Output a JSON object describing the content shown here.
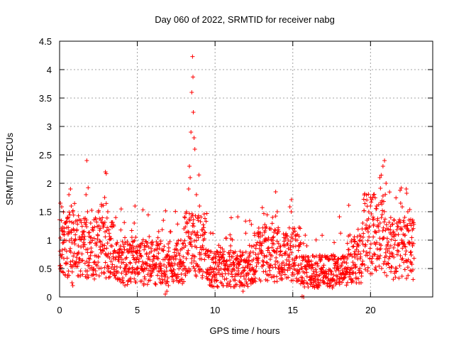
{
  "chart_data": {
    "type": "scatter",
    "title": "Day 060 of 2022, SRMTID for receiver nabg",
    "xlabel": "GPS time / hours",
    "ylabel": "SRMTID / TECUs",
    "xlim": [
      0,
      24
    ],
    "ylim": [
      0,
      4.5
    ],
    "x_ticks": [
      0,
      5,
      10,
      15,
      20
    ],
    "x_tick_labels": [
      "0",
      "5",
      "10",
      "15",
      "20"
    ],
    "y_ticks": [
      0,
      0.5,
      1,
      1.5,
      2,
      2.5,
      3,
      3.5,
      4,
      4.5
    ],
    "y_tick_labels": [
      "0",
      "0.5",
      "1",
      "1.5",
      "2",
      "2.5",
      "3",
      "3.5",
      "4",
      "4.5"
    ],
    "grid": true,
    "marker": "+",
    "color": "#ff0000",
    "data_extent_hours": [
      0,
      22.8
    ],
    "series": [
      {
        "name": "SRMTID",
        "points": [
          [
            0.05,
            1.65
          ],
          [
            0.1,
            1.2
          ],
          [
            0.2,
            0.95
          ],
          [
            0.3,
            1.0
          ],
          [
            0.4,
            0.6
          ],
          [
            0.5,
            1.4
          ],
          [
            0.55,
            1.1
          ],
          [
            0.6,
            1.8
          ],
          [
            0.7,
            1.9
          ],
          [
            0.75,
            1.6
          ],
          [
            0.8,
            0.25
          ],
          [
            0.85,
            0.2
          ],
          [
            0.9,
            1.3
          ],
          [
            1.0,
            1.0
          ],
          [
            1.2,
            0.9
          ],
          [
            1.5,
            1.1
          ],
          [
            1.7,
            1.8
          ],
          [
            1.75,
            2.4
          ],
          [
            1.8,
            1.5
          ],
          [
            2.0,
            1.3
          ],
          [
            2.2,
            0.5
          ],
          [
            2.5,
            0.7
          ],
          [
            2.8,
            1.3
          ],
          [
            2.9,
            1.75
          ],
          [
            2.95,
            2.2
          ],
          [
            3.0,
            2.17
          ],
          [
            3.1,
            1.5
          ],
          [
            3.3,
            0.9
          ],
          [
            3.5,
            0.8
          ],
          [
            3.8,
            0.7
          ],
          [
            4.0,
            0.6
          ],
          [
            4.2,
            0.2
          ],
          [
            4.5,
            0.8
          ],
          [
            4.7,
            0.9
          ],
          [
            4.8,
            1.3
          ],
          [
            4.85,
            1.6
          ],
          [
            4.9,
            1.05
          ],
          [
            5.0,
            0.7
          ],
          [
            5.3,
            0.5
          ],
          [
            5.6,
            0.5
          ],
          [
            5.9,
            0.8
          ],
          [
            6.0,
            0.5
          ],
          [
            6.3,
            0.9
          ],
          [
            6.5,
            0.5
          ],
          [
            6.8,
            0.05
          ],
          [
            6.9,
            0.1
          ],
          [
            7.0,
            0.2
          ],
          [
            7.2,
            0.6
          ],
          [
            7.5,
            0.9
          ],
          [
            7.8,
            1.0
          ],
          [
            8.0,
            1.2
          ],
          [
            8.1,
            0.9
          ],
          [
            8.2,
            1.3
          ],
          [
            8.3,
            1.9
          ],
          [
            8.35,
            2.3
          ],
          [
            8.4,
            2.1
          ],
          [
            8.45,
            2.9
          ],
          [
            8.5,
            3.6
          ],
          [
            8.55,
            4.23
          ],
          [
            8.58,
            3.87
          ],
          [
            8.6,
            3.25
          ],
          [
            8.65,
            2.8
          ],
          [
            8.7,
            2.6
          ],
          [
            8.8,
            1.8
          ],
          [
            9.0,
            1.6
          ],
          [
            9.2,
            0.9
          ],
          [
            9.5,
            0.8
          ],
          [
            9.8,
            0.5
          ],
          [
            10.0,
            0.4
          ],
          [
            10.3,
            0.6
          ],
          [
            10.5,
            0.7
          ],
          [
            10.8,
            0.5
          ],
          [
            11.0,
            0.9
          ],
          [
            11.2,
            0.6
          ],
          [
            11.5,
            0.5
          ],
          [
            11.8,
            0.1
          ],
          [
            12.0,
            0.4
          ],
          [
            12.2,
            0.5
          ],
          [
            12.5,
            0.9
          ],
          [
            12.8,
            0.6
          ],
          [
            13.0,
            0.8
          ],
          [
            13.2,
            1.0
          ],
          [
            13.5,
            1.2
          ],
          [
            13.7,
            1.4
          ],
          [
            13.9,
            1.85
          ],
          [
            14.0,
            1.5
          ],
          [
            14.2,
            0.8
          ],
          [
            14.5,
            0.9
          ],
          [
            14.7,
            1.0
          ],
          [
            14.9,
            1.5
          ],
          [
            15.0,
            1.2
          ],
          [
            15.2,
            0.7
          ],
          [
            15.4,
            0.3
          ],
          [
            15.6,
            0.01
          ],
          [
            15.7,
            0.0
          ],
          [
            15.9,
            0.9
          ],
          [
            16.0,
            0.7
          ],
          [
            16.2,
            0.5
          ],
          [
            16.5,
            0.6
          ],
          [
            16.8,
            0.45
          ],
          [
            17.0,
            0.35
          ],
          [
            17.3,
            0.4
          ],
          [
            17.6,
            0.3
          ],
          [
            17.9,
            0.5
          ],
          [
            18.2,
            0.6
          ],
          [
            18.5,
            0.7
          ],
          [
            18.8,
            0.5
          ],
          [
            19.0,
            0.8
          ],
          [
            19.3,
            1.0
          ],
          [
            19.5,
            1.3
          ],
          [
            19.8,
            1.2
          ],
          [
            20.0,
            1.6
          ],
          [
            20.2,
            1.8
          ],
          [
            20.4,
            1.6
          ],
          [
            20.6,
            2.1
          ],
          [
            20.8,
            2.3
          ],
          [
            20.9,
            2.4
          ],
          [
            21.0,
            2.0
          ],
          [
            21.3,
            0.9
          ],
          [
            21.5,
            0.7
          ],
          [
            21.8,
            0.8
          ],
          [
            22.0,
            1.0
          ],
          [
            22.2,
            1.4
          ],
          [
            22.3,
            1.9
          ],
          [
            22.4,
            1.5
          ],
          [
            22.6,
            0.6
          ],
          [
            22.7,
            0.9
          ]
        ]
      }
    ]
  }
}
